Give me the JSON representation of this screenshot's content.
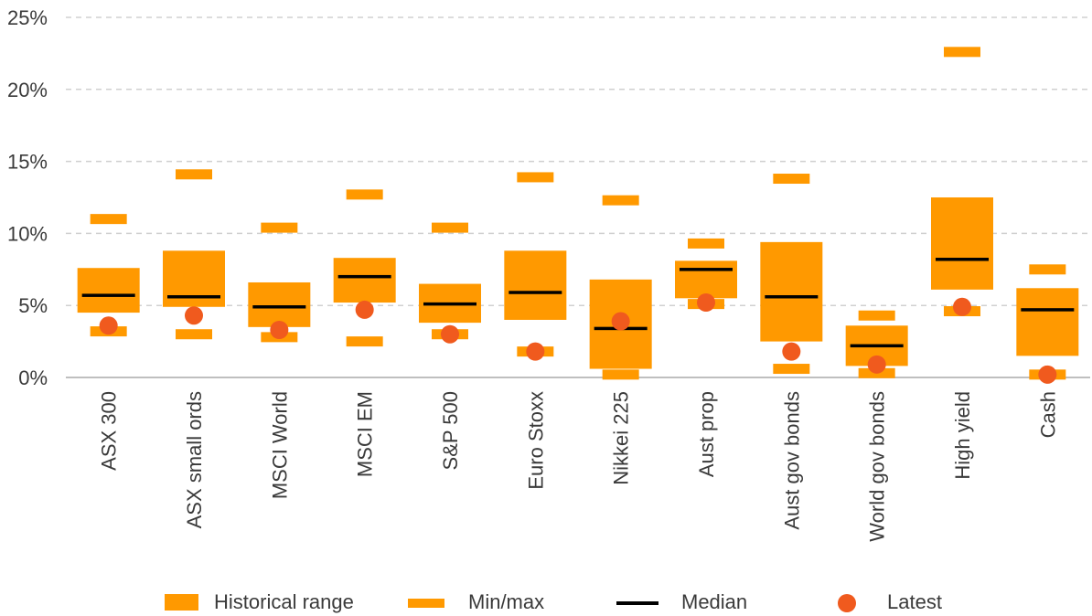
{
  "chart_data": {
    "type": "box",
    "title": "",
    "xlabel": "",
    "ylabel": "",
    "ylim": [
      0,
      25
    ],
    "yticks": [
      0,
      5,
      10,
      15,
      20,
      25
    ],
    "ytick_labels": [
      "0%",
      "5%",
      "10%",
      "15%",
      "20%",
      "25%"
    ],
    "grid": true,
    "legend_position": "bottom",
    "categories": [
      "ASX 300",
      "ASX small ords",
      "MSCI World",
      "MSCI EM",
      "S&P 500",
      "Euro Stoxx",
      "Nikkei 225",
      "Aust prop",
      "Aust gov bonds",
      "World gov bonds",
      "High yield",
      "Cash"
    ],
    "series": [
      {
        "name": "Historical range",
        "low": [
          4.5,
          4.9,
          3.5,
          5.2,
          3.8,
          4.0,
          0.6,
          5.5,
          2.5,
          0.8,
          6.1,
          1.5
        ],
        "high": [
          7.6,
          8.8,
          6.6,
          8.3,
          6.5,
          8.8,
          6.8,
          8.1,
          9.4,
          3.6,
          12.5,
          6.2
        ]
      },
      {
        "name": "Min/max",
        "min": [
          3.2,
          3.0,
          2.8,
          2.5,
          3.0,
          1.8,
          0.2,
          5.1,
          0.6,
          0.3,
          4.6,
          0.2
        ],
        "max": [
          11.0,
          14.1,
          10.4,
          12.7,
          10.4,
          13.9,
          12.3,
          9.3,
          13.8,
          4.3,
          22.6,
          7.5
        ]
      },
      {
        "name": "Median",
        "values": [
          5.7,
          5.6,
          4.9,
          7.0,
          5.1,
          5.9,
          3.4,
          7.5,
          5.6,
          2.2,
          8.2,
          4.7
        ]
      },
      {
        "name": "Latest",
        "values": [
          3.6,
          4.3,
          3.3,
          4.7,
          3.0,
          1.8,
          3.9,
          5.2,
          1.8,
          0.9,
          4.9,
          0.2
        ]
      }
    ],
    "colors": {
      "range": "#ff9900",
      "minmax": "#ff9900",
      "median": "#000000",
      "latest": "#f05a1e",
      "grid": "#d0d0d0",
      "axis": "#bfbfbf"
    }
  },
  "legend": {
    "range_label": "Historical range",
    "minmax_label": "Min/max",
    "median_label": "Median",
    "latest_label": "Latest"
  }
}
